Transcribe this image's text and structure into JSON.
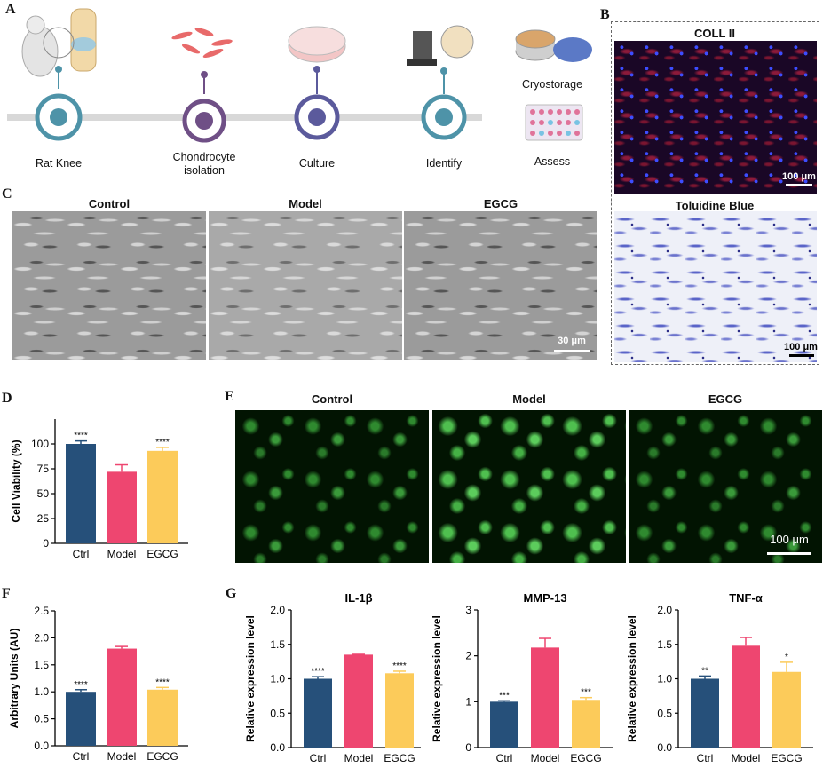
{
  "panels": {
    "A": {
      "label": "A",
      "steps": [
        "Rat Knee",
        "Chondrocyte isolation",
        "Culture",
        "Identify",
        "Cryostorage",
        "Assess"
      ]
    },
    "B": {
      "label": "B",
      "top_title": "COLL II",
      "bottom_title": "Toluidine Blue",
      "scale_top": "100 μm",
      "scale_bottom": "100 μm"
    },
    "C": {
      "label": "C",
      "titles": [
        "Control",
        "Model",
        "EGCG"
      ],
      "scale": "30 μm"
    },
    "D": {
      "label": "D"
    },
    "E": {
      "label": "E",
      "titles": [
        "Control",
        "Model",
        "EGCG"
      ],
      "scale": "100 μm"
    },
    "F": {
      "label": "F"
    },
    "G": {
      "label": "G"
    }
  },
  "colors": {
    "ctrl": "#26507a",
    "model": "#ee4670",
    "egcg": "#fccb5a",
    "timeline": "#d8d8d8"
  },
  "chart_data": [
    {
      "id": "D",
      "type": "bar",
      "categories": [
        "Ctrl",
        "Model",
        "EGCG"
      ],
      "values": [
        100,
        72,
        93
      ],
      "errors": [
        3,
        7,
        3.5
      ],
      "significance": [
        "****",
        "",
        "****"
      ],
      "ylabel": "Cell Viability (%)",
      "ylim": [
        0,
        125
      ],
      "yticks": [
        0,
        25,
        50,
        75,
        100
      ]
    },
    {
      "id": "F",
      "type": "bar",
      "categories": [
        "Ctrl",
        "Model",
        "EGCG"
      ],
      "values": [
        1.0,
        1.8,
        1.04
      ],
      "errors": [
        0.04,
        0.04,
        0.04
      ],
      "significance": [
        "****",
        "",
        "****"
      ],
      "ylabel": "Arbitrary Units (AU)",
      "ylim": [
        0,
        2.5
      ],
      "yticks": [
        0.0,
        0.5,
        1.0,
        1.5,
        2.0,
        2.5
      ]
    },
    {
      "id": "G1",
      "type": "bar",
      "title": "IL-1β",
      "categories": [
        "Ctrl",
        "Model",
        "EGCG"
      ],
      "values": [
        1.0,
        1.35,
        1.08
      ],
      "errors": [
        0.03,
        0.005,
        0.03
      ],
      "significance": [
        "****",
        "",
        "****"
      ],
      "ylabel": "Relative expression level",
      "ylim": [
        0,
        2.0
      ],
      "yticks": [
        0.0,
        0.5,
        1.0,
        1.5,
        2.0
      ]
    },
    {
      "id": "G2",
      "type": "bar",
      "title": "MMP-13",
      "categories": [
        "Ctrl",
        "Model",
        "EGCG"
      ],
      "values": [
        1.0,
        2.18,
        1.04
      ],
      "errors": [
        0.02,
        0.2,
        0.05
      ],
      "significance": [
        "***",
        "",
        "***"
      ],
      "ylabel": "Relative expression level",
      "ylim": [
        0,
        3
      ],
      "yticks": [
        0,
        1,
        2,
        3
      ]
    },
    {
      "id": "G3",
      "type": "bar",
      "title": "TNF-α",
      "categories": [
        "Ctrl",
        "Model",
        "EGCG"
      ],
      "values": [
        1.0,
        1.48,
        1.1
      ],
      "errors": [
        0.04,
        0.12,
        0.14
      ],
      "significance": [
        "**",
        "",
        "*"
      ],
      "ylabel": "Relative expression level",
      "ylim": [
        0,
        2.0
      ],
      "yticks": [
        0.0,
        0.5,
        1.0,
        1.5,
        2.0
      ]
    }
  ]
}
